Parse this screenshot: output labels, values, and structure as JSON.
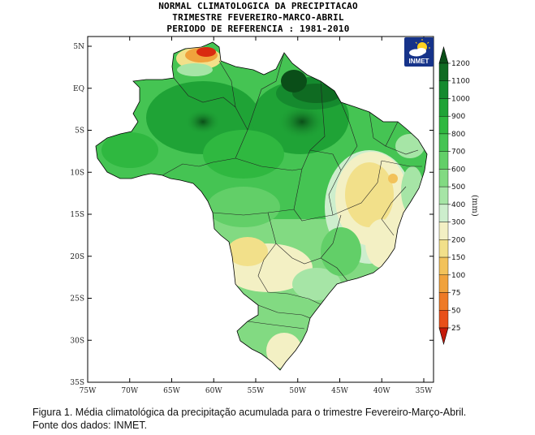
{
  "title": {
    "line1": "NORMAL CLIMATOLOGICA DA PRECIPITACAO",
    "line2": "TRIMESTRE FEVEREIRO-MARCO-ABRIL",
    "line3": "PERIODO DE REFERENCIA : 1981-2010"
  },
  "logo": {
    "text": "INMET",
    "icon": "sun-cloud-icon"
  },
  "axes": {
    "lat_labels": [
      "5N",
      "EQ",
      "5S",
      "10S",
      "15S",
      "20S",
      "25S",
      "30S",
      "35S"
    ],
    "lon_labels": [
      "75W",
      "70W",
      "65W",
      "60W",
      "55W",
      "50W",
      "45W",
      "40W",
      "35W"
    ]
  },
  "colorbar": {
    "unit": "(mm)",
    "levels": [
      "1200",
      "1100",
      "1000",
      "900",
      "800",
      "700",
      "600",
      "500",
      "400",
      "300",
      "200",
      "150",
      "100",
      "75",
      "50",
      "25"
    ],
    "colors": [
      "#0f6b22",
      "#158a2e",
      "#1fa336",
      "#2fb840",
      "#45c453",
      "#62cf68",
      "#82da82",
      "#a6e5a6",
      "#cdeecd",
      "#f3f0c4",
      "#f2e08a",
      "#f2c25a",
      "#f0a23c",
      "#ee7a26",
      "#e8501a",
      "#d92a10"
    ],
    "top_color": "#0a4e18",
    "bottom_color": "#c41a0a"
  },
  "caption": {
    "line1": "Figura 1. Média climatológica da precipitação acumulada para o trimestre Fevereiro-Março-Abril.",
    "line2": "Fonte dos dados: INMET."
  }
}
